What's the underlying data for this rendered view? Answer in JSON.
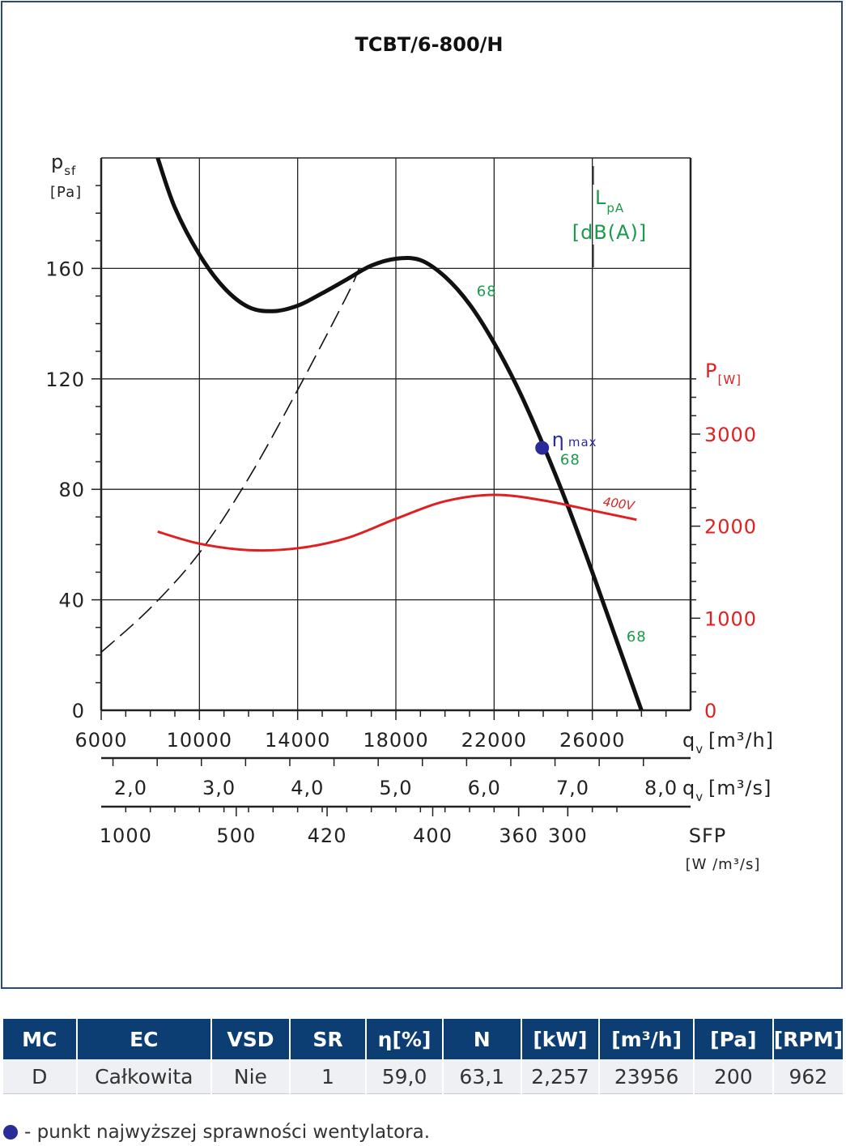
{
  "chart_data": {
    "type": "line",
    "title": "TCBT/6-800/H",
    "ylabel": "p",
    "ylabel_sub": "sf",
    "yunit": "[Pa]",
    "xlabel": "q",
    "xlabel_sub": "v",
    "xunit": "[m³/h]",
    "x2unit": "[m³/s]",
    "sfp_label": "SFP",
    "sfp_unit": "[W /m³/s]",
    "y2label": "P",
    "y2unit": "[W]",
    "lpa_label": "L",
    "lpa_sub": "pA",
    "lpa_unit": "[dB(A)]",
    "xlim": [
      6000,
      30000
    ],
    "ylim": [
      0,
      200
    ],
    "y2lim": [
      0,
      6000
    ],
    "grid": true,
    "x_ticks": [
      "6000",
      "10000",
      "14000",
      "18000",
      "22000",
      "26000"
    ],
    "y_ticks": [
      "0",
      "40",
      "80",
      "120",
      "160"
    ],
    "y2_ticks": [
      "0",
      "1000",
      "2000",
      "3000"
    ],
    "x2_ticks": [
      "2,0",
      "3,0",
      "4,0",
      "5,0",
      "6,0",
      "7,0",
      "8,0"
    ],
    "sfp_ticks": [
      "1000",
      "500",
      "420",
      "400",
      "360",
      "300"
    ],
    "series": [
      {
        "name": "",
        "role": "pressure",
        "color": "#111111",
        "x": [
          8300,
          9000,
          10000,
          11000,
          12000,
          13000,
          14000,
          15000,
          16000,
          17000,
          18000,
          19000,
          20000,
          21000,
          22000,
          23000,
          24000,
          25000,
          26000,
          27000,
          28000
        ],
        "y": [
          200,
          182,
          165,
          153,
          146,
          144.5,
          146.5,
          151,
          156,
          161,
          163.5,
          163,
          157,
          147,
          133,
          116,
          96,
          74,
          50,
          25,
          0
        ]
      },
      {
        "name": "",
        "role": "system curve",
        "color": "#111111",
        "dashed": true,
        "x": [
          6000,
          8000,
          10000,
          12000,
          14000,
          16000,
          16500
        ],
        "y": [
          21,
          37,
          57,
          84,
          116,
          150,
          160
        ]
      },
      {
        "name": "400V",
        "role": "power",
        "color": "#e02020",
        "x": [
          8300,
          10000,
          12000,
          14000,
          16000,
          18000,
          20000,
          22000,
          24000,
          26000,
          27800
        ],
        "y": [
          1940,
          1810,
          1740,
          1760,
          1870,
          2080,
          2270,
          2340,
          2280,
          2170,
          2070
        ]
      }
    ],
    "annotations": [
      {
        "text": "68",
        "x": 21700,
        "y": 150
      },
      {
        "text": "68",
        "x": 25100,
        "y": 89
      },
      {
        "text": "68",
        "x": 27800,
        "y": 25
      }
    ],
    "eta_max": {
      "label": "η",
      "sub": "max",
      "x": 23956,
      "y": 95
    }
  },
  "colors": {
    "pressure": "#111111",
    "power": "#e02020",
    "lpa": "#1a9a4a",
    "eta": "#2a2a9a",
    "table_header": "#0c3e74"
  },
  "table": {
    "headers": [
      "MC",
      "EC",
      "VSD",
      "SR",
      "η[%]",
      "N",
      "[kW]",
      "[m³/h]",
      "[Pa]",
      "[RPM]"
    ],
    "row": [
      "D",
      "Całkowita",
      "Nie",
      "1",
      "59,0",
      "63,1",
      "2,257",
      "23956",
      "200",
      "962"
    ]
  },
  "footnote": "- punkt najwyższej sprawności wentylatora."
}
